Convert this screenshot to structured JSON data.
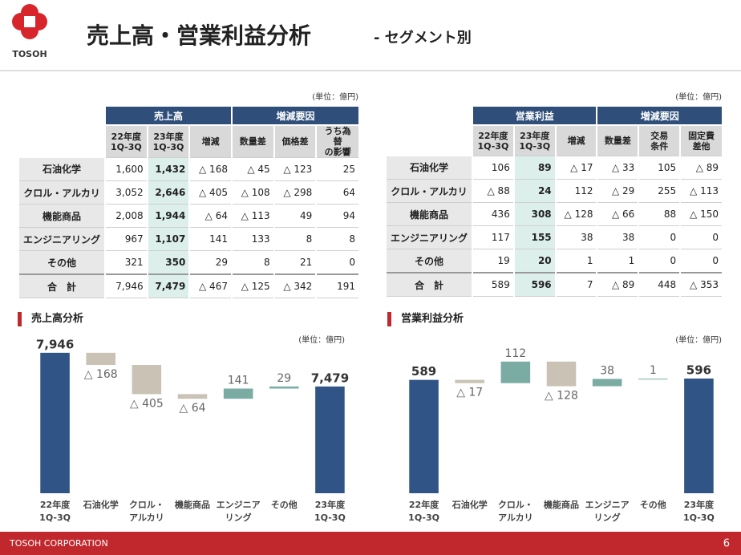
{
  "header": {
    "logo_text": "TOSOH",
    "title": "売上高・営業利益分析",
    "subtitle": "- セグメント別"
  },
  "tables": [
    {
      "unit": "(単位：億円)",
      "groups": [
        "売上高",
        "増減要因"
      ],
      "columns": [
        "22年度\n1Q-3Q",
        "23年度\n1Q-3Q",
        "増減",
        "数量差",
        "価格差",
        "うち為替\nの影響"
      ],
      "rows": [
        {
          "label": "石油化学",
          "cells": [
            "1,600",
            "1,432",
            "△ 168",
            "△ 45",
            "△ 123",
            "25"
          ]
        },
        {
          "label": "クロル・アルカリ",
          "cells": [
            "3,052",
            "2,646",
            "△ 405",
            "△ 108",
            "△ 298",
            "64"
          ]
        },
        {
          "label": "機能商品",
          "cells": [
            "2,008",
            "1,944",
            "△ 64",
            "△ 113",
            "49",
            "94"
          ]
        },
        {
          "label": "エンジニアリング",
          "cells": [
            "967",
            "1,107",
            "141",
            "133",
            "8",
            "8"
          ]
        },
        {
          "label": "その他",
          "cells": [
            "321",
            "350",
            "29",
            "8",
            "21",
            "0"
          ]
        },
        {
          "label": "合　計",
          "cells": [
            "7,946",
            "7,479",
            "△ 467",
            "△ 125",
            "△ 342",
            "191"
          ]
        }
      ]
    },
    {
      "unit": "(単位：億円)",
      "groups": [
        "営業利益",
        "増減要因"
      ],
      "columns": [
        "22年度\n1Q-3Q",
        "23年度\n1Q-3Q",
        "増減",
        "数量差",
        "交易\n条件",
        "固定費\n差他"
      ],
      "rows": [
        {
          "label": "石油化学",
          "cells": [
            "106",
            "89",
            "△ 17",
            "△ 33",
            "105",
            "△ 89"
          ]
        },
        {
          "label": "クロル・アルカリ",
          "cells": [
            "△ 88",
            "24",
            "112",
            "△ 29",
            "255",
            "△ 113"
          ]
        },
        {
          "label": "機能商品",
          "cells": [
            "436",
            "308",
            "△ 128",
            "△ 66",
            "88",
            "△ 150"
          ]
        },
        {
          "label": "エンジニアリング",
          "cells": [
            "117",
            "155",
            "38",
            "38",
            "0",
            "0"
          ]
        },
        {
          "label": "その他",
          "cells": [
            "19",
            "20",
            "1",
            "1",
            "0",
            "0"
          ]
        },
        {
          "label": "合　計",
          "cells": [
            "589",
            "596",
            "7",
            "△ 89",
            "448",
            "△ 353"
          ]
        }
      ]
    }
  ],
  "chart_data": [
    {
      "type": "waterfall",
      "title": "売上高分析",
      "unit": "(単位：億円)",
      "categories": [
        "22年度\n1Q-3Q",
        "石油化学",
        "クロル・\nアルカリ",
        "機能商品",
        "エンジニア\nリング",
        "その他",
        "23年度\n1Q-3Q"
      ],
      "values": [
        7946,
        -168,
        -405,
        -64,
        141,
        29,
        7479
      ],
      "value_labels": [
        "7,946",
        "△ 168",
        "△ 405",
        "△ 64",
        "141",
        "29",
        "7,479"
      ],
      "measures": [
        "total",
        "relative",
        "relative",
        "relative",
        "relative",
        "relative",
        "total"
      ],
      "colors": {
        "total": "#2f5485",
        "decrease": "#c9c2b5",
        "increase": "#7aaca4"
      },
      "ylim": [
        6000,
        8000
      ]
    },
    {
      "type": "waterfall",
      "title": "営業利益分析",
      "unit": "(単位：億円)",
      "categories": [
        "22年度\n1Q-3Q",
        "石油化学",
        "クロル・\nアルカリ",
        "機能商品",
        "エンジニア\nリング",
        "その他",
        "23年度\n1Q-3Q"
      ],
      "values": [
        589,
        -17,
        112,
        -128,
        38,
        1,
        596
      ],
      "value_labels": [
        "589",
        "△ 17",
        "112",
        "△ 128",
        "38",
        "1",
        "596"
      ],
      "measures": [
        "total",
        "relative",
        "relative",
        "relative",
        "relative",
        "relative",
        "total"
      ],
      "colors": {
        "total": "#2f5485",
        "decrease": "#c9c2b5",
        "increase": "#7aaca4"
      },
      "ylim": [
        0,
        700
      ]
    }
  ],
  "footer": {
    "company": "TOSOH CORPORATION",
    "page": "6"
  }
}
